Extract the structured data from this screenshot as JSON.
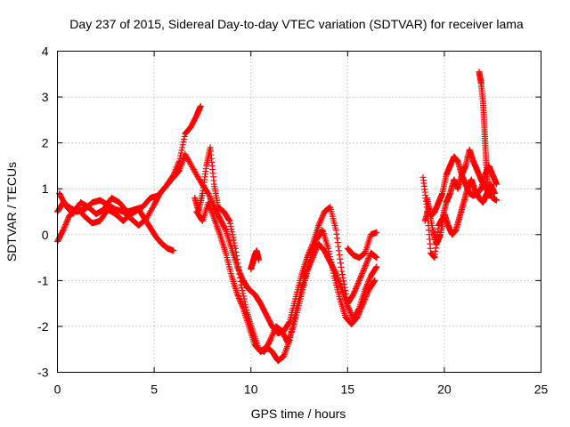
{
  "chart_data": {
    "type": "scatter",
    "title": "Day 237 of 2015, Sidereal Day-to-day VTEC variation (SDTVAR) for receiver lama",
    "xlabel": "GPS time / hours",
    "ylabel": "SDTVAR / TECUs",
    "xlim": [
      0,
      25
    ],
    "ylim": [
      -3,
      4
    ],
    "xticks": [
      0,
      5,
      10,
      15,
      20,
      25
    ],
    "yticks": [
      -3,
      -2,
      -1,
      0,
      1,
      2,
      3,
      4
    ],
    "xtick_labels": [
      "0",
      "5",
      "10",
      "15",
      "20",
      "25"
    ],
    "ytick_labels": [
      "-3",
      "-2",
      "-1",
      "0",
      "1",
      "2",
      "3",
      "4"
    ],
    "grid": true,
    "marker": "+",
    "color": "#ff0000",
    "series": [
      {
        "name": "track-1",
        "x": [
          0.0,
          0.3,
          0.6,
          1.0,
          1.4,
          1.8,
          2.2,
          2.6,
          3.0,
          3.4,
          3.8,
          4.2,
          4.6,
          5.0,
          5.3,
          5.6,
          6.0,
          6.3,
          6.6,
          6.9,
          7.2,
          7.4
        ],
        "y": [
          0.5,
          0.7,
          0.6,
          0.5,
          0.55,
          0.7,
          0.75,
          0.65,
          0.55,
          0.5,
          0.35,
          0.2,
          0.35,
          0.65,
          0.9,
          1.05,
          1.3,
          1.6,
          2.2,
          2.35,
          2.6,
          2.8
        ]
      },
      {
        "name": "track-2",
        "x": [
          0.0,
          0.3,
          0.6,
          1.0,
          1.4,
          1.8,
          2.2,
          2.6,
          3.0,
          3.4,
          3.8,
          4.2,
          4.5,
          4.8,
          5.1,
          5.4,
          5.7,
          6.0
        ],
        "y": [
          -0.15,
          0.1,
          0.4,
          0.6,
          0.4,
          0.25,
          0.3,
          0.55,
          0.45,
          0.3,
          0.45,
          0.55,
          0.35,
          0.15,
          -0.05,
          -0.2,
          -0.3,
          -0.35
        ]
      },
      {
        "name": "track-3",
        "x": [
          0.1,
          0.4,
          0.8,
          1.2,
          1.6,
          2.0,
          2.4,
          2.8,
          3.2,
          3.6,
          4.0,
          4.4,
          4.8,
          5.2,
          5.6,
          6.0,
          6.3,
          6.6,
          7.0,
          7.4,
          7.8,
          8.1,
          8.4,
          8.7,
          9.0,
          9.3,
          9.6,
          9.9,
          10.2,
          10.5,
          10.8,
          11.1,
          11.4,
          11.7,
          12.0,
          12.3,
          12.6,
          12.9,
          13.2,
          13.5,
          13.8,
          14.1,
          14.4,
          14.7,
          15.0,
          15.3,
          15.6,
          15.9,
          16.2,
          16.5
        ],
        "y": [
          0.9,
          0.65,
          0.45,
          0.7,
          0.6,
          0.45,
          0.55,
          0.8,
          0.7,
          0.5,
          0.55,
          0.6,
          0.8,
          0.85,
          1.05,
          1.25,
          1.4,
          1.75,
          1.45,
          1.15,
          0.9,
          0.6,
          0.35,
          0.1,
          -0.3,
          -0.7,
          -1.0,
          -1.2,
          -1.3,
          -1.5,
          -1.75,
          -2.0,
          -2.15,
          -2.1,
          -1.9,
          -1.4,
          -0.9,
          -0.5,
          -0.2,
          0.2,
          0.5,
          0.6,
          0.1,
          -0.8,
          -1.5,
          -1.3,
          -1.0,
          -0.7,
          -0.4,
          -0.5
        ]
      },
      {
        "name": "track-4",
        "x": [
          7.1,
          7.3,
          7.5,
          7.7,
          7.9,
          8.1,
          8.3,
          8.6,
          8.9,
          9.2,
          9.5,
          9.8,
          10.1,
          10.4,
          10.7,
          11.0,
          11.3,
          11.6,
          11.9,
          12.2,
          12.5,
          12.8,
          13.1,
          13.4,
          13.7,
          14.0,
          14.3,
          14.6,
          14.9,
          15.2,
          15.5,
          15.8,
          16.1,
          16.4
        ],
        "y": [
          0.8,
          0.5,
          0.9,
          1.5,
          1.9,
          1.1,
          0.6,
          0.5,
          0.3,
          -0.3,
          -1.1,
          -1.7,
          -2.1,
          -2.5,
          -2.55,
          -2.3,
          -2.0,
          -2.1,
          -2.35,
          -2.0,
          -1.5,
          -1.0,
          -0.5,
          -0.1,
          0.1,
          -0.3,
          -0.9,
          -1.4,
          -1.8,
          -1.95,
          -1.8,
          -1.5,
          -1.2,
          -1.0
        ]
      },
      {
        "name": "track-5",
        "x": [
          7.2,
          7.5,
          7.8,
          8.1,
          8.4,
          8.7,
          9.0,
          9.3,
          9.6,
          9.9,
          10.2,
          10.5,
          10.8,
          11.1,
          11.4,
          11.7,
          12.0,
          12.3,
          12.6,
          12.9,
          13.2,
          13.5,
          13.8,
          14.1,
          14.4,
          14.7,
          15.0,
          15.3,
          15.6,
          15.9,
          16.2,
          16.5
        ],
        "y": [
          0.5,
          0.3,
          0.7,
          0.35,
          0.0,
          -0.4,
          -0.9,
          -1.3,
          -1.6,
          -2.0,
          -2.4,
          -2.55,
          -2.45,
          -2.55,
          -2.75,
          -2.65,
          -2.3,
          -1.7,
          -1.2,
          -0.8,
          -0.5,
          -0.2,
          -0.35,
          -0.6,
          -0.85,
          -1.2,
          -1.55,
          -1.85,
          -1.6,
          -1.2,
          -0.9,
          -0.7
        ]
      },
      {
        "name": "track-6",
        "x": [
          10.0,
          10.1,
          10.2,
          10.3,
          10.4
        ],
        "y": [
          -0.75,
          -0.6,
          -0.45,
          -0.35,
          -0.55
        ]
      },
      {
        "name": "track-7",
        "x": [
          15.0,
          15.3,
          15.6,
          15.9,
          16.2,
          16.5
        ],
        "y": [
          -0.3,
          -0.45,
          -0.5,
          -0.4,
          0.0,
          0.05
        ]
      },
      {
        "name": "track-8",
        "x": [
          18.9,
          19.1,
          19.3,
          19.5,
          19.7,
          19.9,
          20.1,
          20.3,
          20.5,
          20.7,
          20.9,
          21.1,
          21.3,
          21.5,
          21.7,
          21.9,
          22.1,
          22.3,
          22.5,
          22.7
        ],
        "y": [
          1.25,
          0.6,
          -0.4,
          -0.5,
          0.2,
          0.35,
          0.7,
          0.9,
          1.2,
          1.0,
          1.3,
          1.5,
          1.85,
          1.6,
          1.4,
          1.2,
          1.05,
          0.9,
          0.8,
          0.75
        ]
      },
      {
        "name": "track-9",
        "x": [
          19.0,
          19.2,
          19.4,
          19.6,
          19.8,
          20.0,
          20.2,
          20.4,
          20.6,
          20.8,
          21.0,
          21.2,
          21.4,
          21.6,
          21.8,
          22.0,
          22.2,
          22.4,
          22.6
        ],
        "y": [
          0.3,
          0.6,
          0.1,
          -0.2,
          0.0,
          0.45,
          0.2,
          0.0,
          0.1,
          0.4,
          0.7,
          1.0,
          1.2,
          0.95,
          0.8,
          0.7,
          0.9,
          1.1,
          0.9
        ]
      },
      {
        "name": "track-10",
        "x": [
          19.1,
          19.3,
          19.5,
          19.7,
          19.9,
          20.1,
          20.3,
          20.5,
          20.7,
          20.9,
          21.1,
          21.3,
          21.5,
          21.7,
          21.9,
          22.1,
          22.3,
          22.5,
          22.7
        ],
        "y": [
          0.8,
          0.4,
          0.5,
          0.7,
          0.9,
          1.3,
          1.5,
          1.7,
          1.6,
          1.3,
          1.1,
          0.9,
          0.85,
          0.9,
          1.0,
          1.3,
          1.5,
          1.3,
          1.1
        ]
      },
      {
        "name": "track-11",
        "x": [
          21.8,
          21.9,
          22.0,
          22.05,
          22.1,
          22.15,
          22.2,
          22.25,
          22.3
        ],
        "y": [
          3.55,
          3.3,
          2.9,
          2.5,
          2.1,
          1.7,
          1.3,
          1.0,
          0.85
        ]
      }
    ]
  }
}
